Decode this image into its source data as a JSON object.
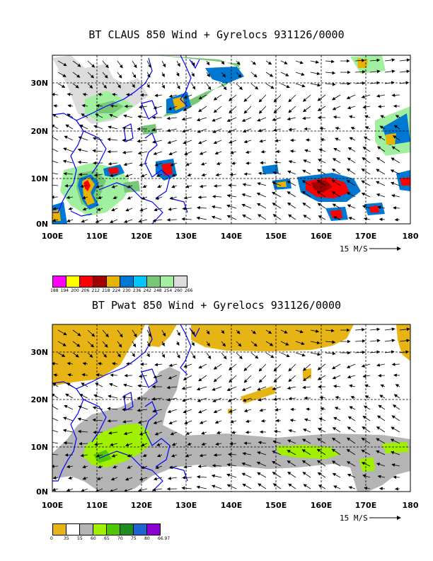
{
  "top": {
    "title": "BT CLAUS 850 Wind + Gyrelocs 931126/0000",
    "x_ticks": [
      "100E",
      "110E",
      "120E",
      "130E",
      "140E",
      "150E",
      "160E",
      "170E",
      "180"
    ],
    "y_ticks": [
      "0N",
      "10N",
      "20N",
      "30N"
    ],
    "ref_vector": "15 M/S",
    "legend": {
      "colors": [
        "#ff00ff",
        "#ffff00",
        "#ff0000",
        "#a00000",
        "#e6b400",
        "#0078d2",
        "#00c8ff",
        "#78c878",
        "#a0f0a0",
        "#dcdcdc"
      ],
      "labels": [
        "188",
        "194",
        "200",
        "206",
        "212",
        "218",
        "224",
        "230",
        "236",
        "242",
        "248",
        "254",
        "260",
        "266"
      ]
    }
  },
  "bottom": {
    "title": "BT Pwat 850 Wind + Gyrelocs 931126/0000",
    "x_ticks": [
      "100E",
      "110E",
      "120E",
      "130E",
      "140E",
      "150E",
      "160E",
      "170E",
      "180"
    ],
    "y_ticks": [
      "0N",
      "10N",
      "20N",
      "30N"
    ],
    "ref_vector": "15 M/S",
    "legend": {
      "colors": [
        "#e6b414",
        "#ffffff",
        "#b4b4b4",
        "#a0f000",
        "#50c800",
        "#1e8c1e",
        "#1e64d2",
        "#8c00d2"
      ],
      "labels": [
        "0",
        "35",
        "55",
        "60",
        "65",
        "70",
        "75",
        "80",
        "66.97"
      ]
    }
  }
}
